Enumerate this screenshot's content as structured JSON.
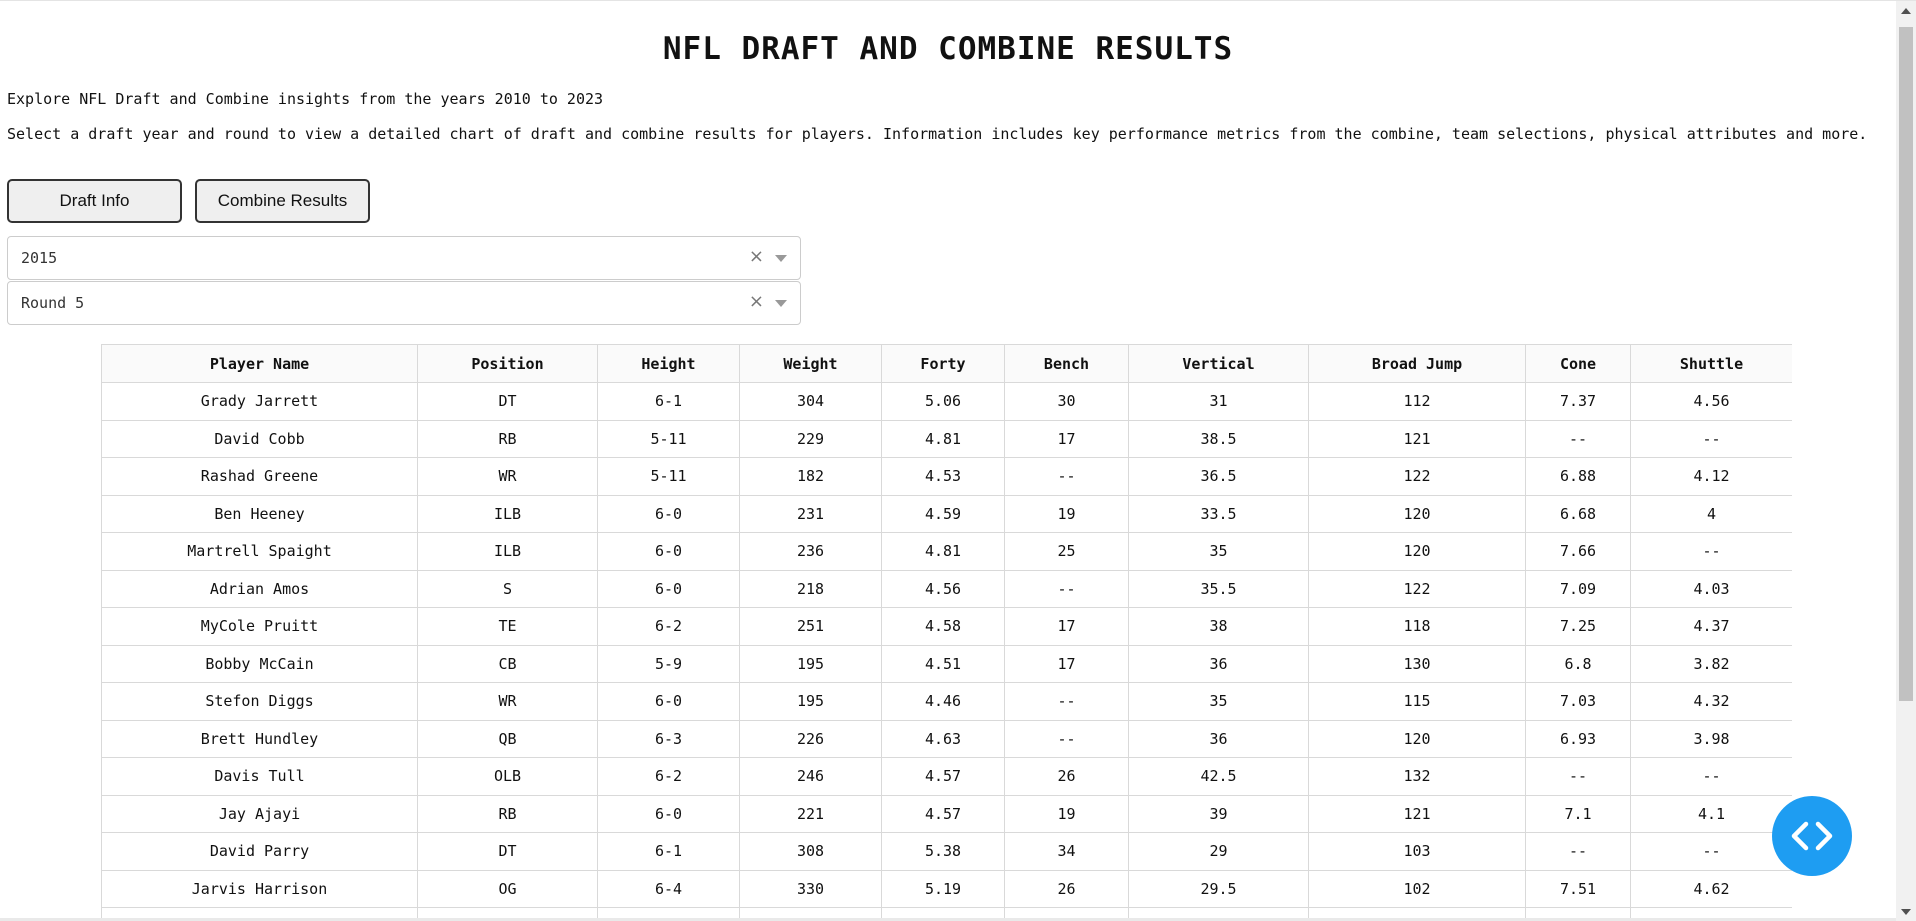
{
  "header": {
    "title": "NFL DRAFT AND COMBINE RESULTS",
    "subtitle": "Explore NFL Draft and Combine insights from the years 2010 to 2023",
    "description": "Select a draft year and round to view a detailed chart of draft and combine results for players. Information includes key performance metrics from the combine, team selections, physical attributes and more."
  },
  "buttons": {
    "draft_info": "Draft Info",
    "combine_results": "Combine Results"
  },
  "filters": {
    "year": {
      "value": "2015",
      "clear": "×"
    },
    "round": {
      "value": "Round 5",
      "clear": "×"
    }
  },
  "table": {
    "columns": [
      "Player Name",
      "Position",
      "Height",
      "Weight",
      "Forty",
      "Bench",
      "Vertical",
      "Broad Jump",
      "Cone",
      "Shuttle"
    ],
    "rows": [
      [
        "Grady Jarrett",
        "DT",
        "6-1",
        "304",
        "5.06",
        "30",
        "31",
        "112",
        "7.37",
        "4.56"
      ],
      [
        "David Cobb",
        "RB",
        "5-11",
        "229",
        "4.81",
        "17",
        "38.5",
        "121",
        "--",
        "--"
      ],
      [
        "Rashad Greene",
        "WR",
        "5-11",
        "182",
        "4.53",
        "--",
        "36.5",
        "122",
        "6.88",
        "4.12"
      ],
      [
        "Ben Heeney",
        "ILB",
        "6-0",
        "231",
        "4.59",
        "19",
        "33.5",
        "120",
        "6.68",
        "4"
      ],
      [
        "Martrell Spaight",
        "ILB",
        "6-0",
        "236",
        "4.81",
        "25",
        "35",
        "120",
        "7.66",
        "--"
      ],
      [
        "Adrian Amos",
        "S",
        "6-0",
        "218",
        "4.56",
        "--",
        "35.5",
        "122",
        "7.09",
        "4.03"
      ],
      [
        "MyCole Pruitt",
        "TE",
        "6-2",
        "251",
        "4.58",
        "17",
        "38",
        "118",
        "7.25",
        "4.37"
      ],
      [
        "Bobby McCain",
        "CB",
        "5-9",
        "195",
        "4.51",
        "17",
        "36",
        "130",
        "6.8",
        "3.82"
      ],
      [
        "Stefon Diggs",
        "WR",
        "6-0",
        "195",
        "4.46",
        "--",
        "35",
        "115",
        "7.03",
        "4.32"
      ],
      [
        "Brett Hundley",
        "QB",
        "6-3",
        "226",
        "4.63",
        "--",
        "36",
        "120",
        "6.93",
        "3.98"
      ],
      [
        "Davis Tull",
        "OLB",
        "6-2",
        "246",
        "4.57",
        "26",
        "42.5",
        "132",
        "--",
        "--"
      ],
      [
        "Jay Ajayi",
        "RB",
        "6-0",
        "221",
        "4.57",
        "19",
        "39",
        "121",
        "7.1",
        "4.1"
      ],
      [
        "David Parry",
        "DT",
        "6-1",
        "308",
        "5.38",
        "34",
        "29",
        "103",
        "--",
        "--"
      ],
      [
        "Jarvis Harrison",
        "OG",
        "6-4",
        "330",
        "5.19",
        "26",
        "29.5",
        "102",
        "7.51",
        "4.62"
      ],
      [
        "",
        "",
        "",
        "",
        "",
        "",
        "",
        "",
        "",
        ""
      ]
    ]
  },
  "colors": {
    "accent": "#1e9df2",
    "border": "#d9d9d9"
  },
  "icons": {
    "clear": "close-icon",
    "dropdown": "chevron-down-icon",
    "fab": "code-icon"
  }
}
